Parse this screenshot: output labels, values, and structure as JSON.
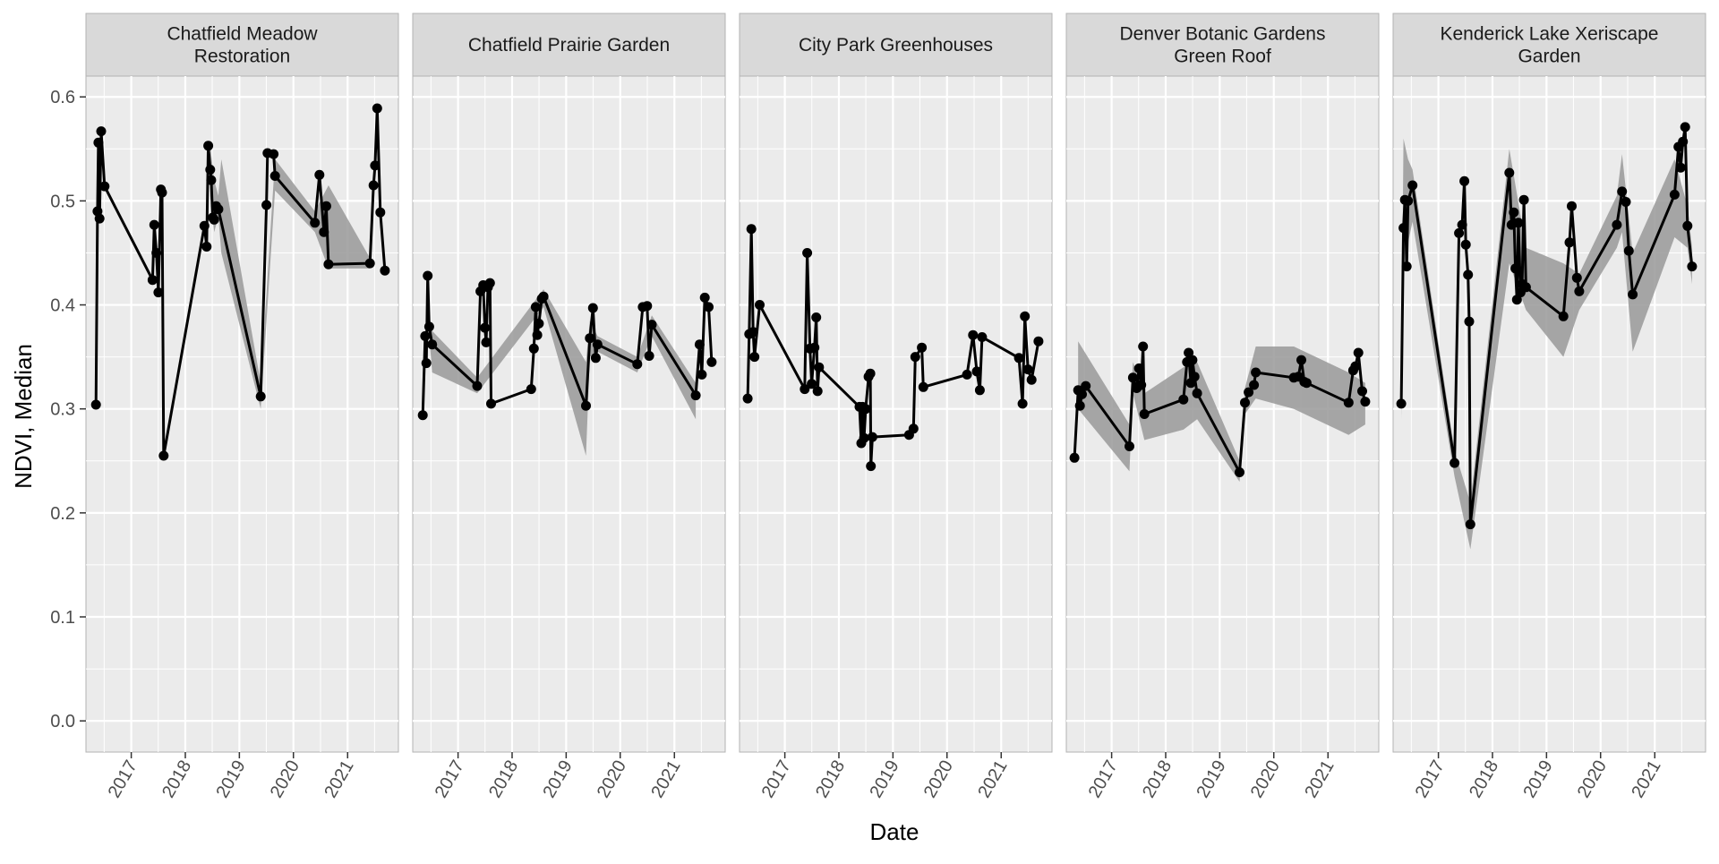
{
  "chart_data": {
    "type": "line",
    "xlabel": "Date",
    "ylabel": "NDVI, Median",
    "ylim": [
      -0.03,
      0.62
    ],
    "y_ticks": [
      0.0,
      0.1,
      0.2,
      0.3,
      0.4,
      0.5,
      0.6
    ],
    "y_tick_labels": [
      "0.0",
      "0.1",
      "0.2",
      "0.3",
      "0.4",
      "0.5",
      "0.6"
    ],
    "xlim": [
      "2016-03-01",
      "2021-12-10"
    ],
    "x_ticks": [
      "2017-01-01",
      "2018-01-01",
      "2019-01-01",
      "2020-01-01",
      "2021-01-01"
    ],
    "x_tick_labels": [
      "2017",
      "2018",
      "2019",
      "2020",
      "2021"
    ],
    "grid": true,
    "colors": {
      "panel_bg": "#ebebeb",
      "strip_bg": "#d9d9d9",
      "grid": "#ffffff",
      "line": "#000000",
      "ribbon": "#999999"
    },
    "panels": [
      {
        "title_lines": [
          "Chatfield Meadow",
          "Restoration"
        ],
        "points": [
          [
            "2016-05-08",
            0.304
          ],
          [
            "2016-05-18",
            0.49
          ],
          [
            "2016-05-24",
            0.556
          ],
          [
            "2016-06-01",
            0.483
          ],
          [
            "2016-06-12",
            0.567
          ],
          [
            "2016-07-05",
            0.514
          ],
          [
            "2017-05-25",
            0.424
          ],
          [
            "2017-06-05",
            0.477
          ],
          [
            "2017-06-20",
            0.45
          ],
          [
            "2017-07-03",
            0.412
          ],
          [
            "2017-07-20",
            0.511
          ],
          [
            "2017-07-28",
            0.508
          ],
          [
            "2017-08-08",
            0.255
          ],
          [
            "2018-05-10",
            0.476
          ],
          [
            "2018-05-25",
            0.456
          ],
          [
            "2018-06-05",
            0.553
          ],
          [
            "2018-06-18",
            0.53
          ],
          [
            "2018-06-25",
            0.52
          ],
          [
            "2018-07-05",
            0.484
          ],
          [
            "2018-07-15",
            0.482
          ],
          [
            "2018-07-28",
            0.495
          ],
          [
            "2018-08-12",
            0.492
          ],
          [
            "2019-05-25",
            0.312
          ],
          [
            "2019-07-03",
            0.496
          ],
          [
            "2019-07-10",
            0.546
          ],
          [
            "2019-08-20",
            0.545
          ],
          [
            "2019-08-30",
            0.524
          ],
          [
            "2020-05-25",
            0.479
          ],
          [
            "2020-06-25",
            0.525
          ],
          [
            "2020-07-25",
            0.47
          ],
          [
            "2020-08-10",
            0.495
          ],
          [
            "2020-08-25",
            0.439
          ],
          [
            "2021-06-01",
            0.44
          ],
          [
            "2021-06-25",
            0.515
          ],
          [
            "2021-07-05",
            0.534
          ],
          [
            "2021-07-20",
            0.589
          ],
          [
            "2021-08-10",
            0.489
          ],
          [
            "2021-09-10",
            0.433
          ]
        ],
        "ribbon": [
          [
            "2018-06-18",
            0.505,
            0.553
          ],
          [
            "2018-07-15",
            0.47,
            0.52
          ],
          [
            "2018-08-12",
            0.485,
            0.505
          ],
          [
            "2018-09-01",
            0.45,
            0.54
          ],
          [
            "2019-05-25",
            0.3,
            0.325
          ],
          [
            "2019-08-30",
            0.51,
            0.54
          ],
          [
            "2020-05-25",
            0.47,
            0.49
          ],
          [
            "2020-08-25",
            0.435,
            0.515
          ],
          [
            "2021-06-01",
            0.435,
            0.445
          ]
        ]
      },
      {
        "title_lines": [
          "Chatfield Prairie Garden"
        ],
        "points": [
          [
            "2016-05-08",
            0.294
          ],
          [
            "2016-05-24",
            0.37
          ],
          [
            "2016-06-01",
            0.344
          ],
          [
            "2016-06-10",
            0.428
          ],
          [
            "2016-06-20",
            0.379
          ],
          [
            "2016-07-10",
            0.362
          ],
          [
            "2017-05-10",
            0.322
          ],
          [
            "2017-06-01",
            0.413
          ],
          [
            "2017-06-20",
            0.419
          ],
          [
            "2017-07-01",
            0.378
          ],
          [
            "2017-07-10",
            0.364
          ],
          [
            "2017-07-22",
            0.417
          ],
          [
            "2017-08-05",
            0.421
          ],
          [
            "2017-08-12",
            0.305
          ],
          [
            "2018-05-10",
            0.319
          ],
          [
            "2018-05-28",
            0.358
          ],
          [
            "2018-06-10",
            0.398
          ],
          [
            "2018-06-20",
            0.371
          ],
          [
            "2018-07-01",
            0.382
          ],
          [
            "2018-07-20",
            0.406
          ],
          [
            "2018-08-01",
            0.408
          ],
          [
            "2019-05-15",
            0.303
          ],
          [
            "2019-06-10",
            0.368
          ],
          [
            "2019-07-01",
            0.397
          ],
          [
            "2019-07-20",
            0.349
          ],
          [
            "2019-08-01",
            0.362
          ],
          [
            "2020-04-25",
            0.343
          ],
          [
            "2020-06-01",
            0.398
          ],
          [
            "2020-07-01",
            0.399
          ],
          [
            "2020-07-15",
            0.351
          ],
          [
            "2020-08-01",
            0.381
          ],
          [
            "2021-05-25",
            0.313
          ],
          [
            "2021-06-20",
            0.362
          ],
          [
            "2021-07-05",
            0.333
          ],
          [
            "2021-07-25",
            0.407
          ],
          [
            "2021-08-20",
            0.398
          ],
          [
            "2021-09-10",
            0.345
          ]
        ],
        "ribbon": [
          [
            "2016-06-20",
            0.37,
            0.39
          ],
          [
            "2016-07-10",
            0.335,
            0.375
          ],
          [
            "2017-05-10",
            0.315,
            0.33
          ],
          [
            "2018-08-01",
            0.398,
            0.415
          ],
          [
            "2019-05-15",
            0.255,
            0.345
          ],
          [
            "2019-06-10",
            0.35,
            0.385
          ],
          [
            "2019-08-01",
            0.355,
            0.37
          ],
          [
            "2020-04-25",
            0.335,
            0.35
          ],
          [
            "2020-08-01",
            0.37,
            0.39
          ],
          [
            "2021-05-25",
            0.29,
            0.325
          ]
        ]
      },
      {
        "title_lines": [
          "City Park Greenhouses"
        ],
        "points": [
          [
            "2016-04-25",
            0.31
          ],
          [
            "2016-05-05",
            0.372
          ],
          [
            "2016-05-20",
            0.473
          ],
          [
            "2016-06-01",
            0.374
          ],
          [
            "2016-06-10",
            0.35
          ],
          [
            "2016-07-15",
            0.4
          ],
          [
            "2017-05-15",
            0.319
          ],
          [
            "2017-06-01",
            0.45
          ],
          [
            "2017-06-20",
            0.358
          ],
          [
            "2017-07-01",
            0.324
          ],
          [
            "2017-07-20",
            0.359
          ],
          [
            "2017-08-01",
            0.388
          ],
          [
            "2017-08-10",
            0.317
          ],
          [
            "2017-08-20",
            0.34
          ],
          [
            "2018-05-20",
            0.302
          ],
          [
            "2018-06-01",
            0.267
          ],
          [
            "2018-06-10",
            0.302
          ],
          [
            "2018-06-20",
            0.272
          ],
          [
            "2018-07-01",
            0.3
          ],
          [
            "2018-07-20",
            0.331
          ],
          [
            "2018-08-01",
            0.334
          ],
          [
            "2018-08-05",
            0.245
          ],
          [
            "2018-08-15",
            0.273
          ],
          [
            "2019-04-20",
            0.275
          ],
          [
            "2019-05-20",
            0.281
          ],
          [
            "2019-06-01",
            0.35
          ],
          [
            "2019-07-15",
            0.359
          ],
          [
            "2019-07-25",
            0.321
          ],
          [
            "2020-05-15",
            0.333
          ],
          [
            "2020-06-25",
            0.371
          ],
          [
            "2020-07-20",
            0.336
          ],
          [
            "2020-08-10",
            0.318
          ],
          [
            "2020-08-25",
            0.369
          ],
          [
            "2021-05-01",
            0.349
          ],
          [
            "2021-05-25",
            0.305
          ],
          [
            "2021-06-10",
            0.389
          ],
          [
            "2021-07-01",
            0.338
          ],
          [
            "2021-07-25",
            0.328
          ],
          [
            "2021-09-10",
            0.365
          ]
        ],
        "ribbon": []
      },
      {
        "title_lines": [
          "Denver Botanic Gardens",
          "Green Roof"
        ],
        "points": [
          [
            "2016-04-25",
            0.253
          ],
          [
            "2016-05-20",
            0.318
          ],
          [
            "2016-06-01",
            0.303
          ],
          [
            "2016-06-15",
            0.314
          ],
          [
            "2016-07-10",
            0.322
          ],
          [
            "2017-05-01",
            0.264
          ],
          [
            "2017-05-25",
            0.33
          ],
          [
            "2017-06-20",
            0.32
          ],
          [
            "2017-07-05",
            0.339
          ],
          [
            "2017-07-20",
            0.323
          ],
          [
            "2017-08-01",
            0.36
          ],
          [
            "2017-08-10",
            0.295
          ],
          [
            "2018-05-01",
            0.309
          ],
          [
            "2018-05-25",
            0.345
          ],
          [
            "2018-06-05",
            0.354
          ],
          [
            "2018-06-20",
            0.325
          ],
          [
            "2018-07-01",
            0.347
          ],
          [
            "2018-07-15",
            0.331
          ],
          [
            "2018-08-01",
            0.315
          ],
          [
            "2019-05-15",
            0.239
          ],
          [
            "2019-06-20",
            0.306
          ],
          [
            "2019-07-15",
            0.316
          ],
          [
            "2019-08-20",
            0.323
          ],
          [
            "2019-09-01",
            0.335
          ],
          [
            "2020-05-15",
            0.33
          ],
          [
            "2020-06-15",
            0.331
          ],
          [
            "2020-07-05",
            0.347
          ],
          [
            "2020-07-25",
            0.326
          ],
          [
            "2020-08-10",
            0.325
          ],
          [
            "2021-05-20",
            0.306
          ],
          [
            "2021-06-20",
            0.337
          ],
          [
            "2021-07-05",
            0.341
          ],
          [
            "2021-07-25",
            0.354
          ],
          [
            "2021-08-20",
            0.317
          ],
          [
            "2021-09-10",
            0.307
          ]
        ],
        "ribbon": [
          [
            "2016-05-20",
            0.3,
            0.365
          ],
          [
            "2017-05-01",
            0.24,
            0.285
          ],
          [
            "2017-05-25",
            0.315,
            0.345
          ],
          [
            "2017-08-10",
            0.27,
            0.315
          ],
          [
            "2018-05-01",
            0.28,
            0.34
          ],
          [
            "2018-08-01",
            0.29,
            0.345
          ],
          [
            "2019-05-15",
            0.23,
            0.25
          ],
          [
            "2019-06-20",
            0.295,
            0.32
          ],
          [
            "2019-09-01",
            0.31,
            0.36
          ],
          [
            "2020-05-15",
            0.3,
            0.36
          ],
          [
            "2021-05-20",
            0.275,
            0.335
          ],
          [
            "2021-09-10",
            0.285,
            0.325
          ]
        ]
      },
      {
        "title_lines": [
          "Kenderick Lake Xeriscape",
          "Garden"
        ],
        "points": [
          [
            "2016-04-25",
            0.305
          ],
          [
            "2016-05-10",
            0.474
          ],
          [
            "2016-05-20",
            0.501
          ],
          [
            "2016-06-01",
            0.437
          ],
          [
            "2016-06-10",
            0.5
          ],
          [
            "2016-07-10",
            0.515
          ],
          [
            "2017-04-20",
            0.248
          ],
          [
            "2017-05-20",
            0.469
          ],
          [
            "2017-06-10",
            0.477
          ],
          [
            "2017-06-25",
            0.519
          ],
          [
            "2017-07-05",
            0.458
          ],
          [
            "2017-07-20",
            0.429
          ],
          [
            "2017-07-28",
            0.384
          ],
          [
            "2017-08-05",
            0.189
          ],
          [
            "2018-04-25",
            0.527
          ],
          [
            "2018-05-10",
            0.477
          ],
          [
            "2018-05-25",
            0.489
          ],
          [
            "2018-06-05",
            0.435
          ],
          [
            "2018-06-15",
            0.405
          ],
          [
            "2018-06-25",
            0.479
          ],
          [
            "2018-07-10",
            0.412
          ],
          [
            "2018-07-20",
            0.42
          ],
          [
            "2018-08-01",
            0.501
          ],
          [
            "2018-08-15",
            0.417
          ],
          [
            "2019-04-25",
            0.389
          ],
          [
            "2019-06-05",
            0.46
          ],
          [
            "2019-06-20",
            0.495
          ],
          [
            "2019-07-25",
            0.426
          ],
          [
            "2019-08-10",
            0.413
          ],
          [
            "2020-04-20",
            0.477
          ],
          [
            "2020-05-25",
            0.509
          ],
          [
            "2020-06-20",
            0.499
          ],
          [
            "2020-07-10",
            0.452
          ],
          [
            "2020-08-05",
            0.41
          ],
          [
            "2021-05-15",
            0.506
          ],
          [
            "2021-06-10",
            0.552
          ],
          [
            "2021-06-25",
            0.532
          ],
          [
            "2021-07-10",
            0.557
          ],
          [
            "2021-07-25",
            0.571
          ],
          [
            "2021-08-10",
            0.476
          ],
          [
            "2021-09-10",
            0.437
          ]
        ],
        "ribbon": [
          [
            "2016-04-25",
            0.29,
            0.32
          ],
          [
            "2016-05-10",
            0.43,
            0.56
          ],
          [
            "2016-06-10",
            0.46,
            0.54
          ],
          [
            "2016-07-10",
            0.48,
            0.53
          ],
          [
            "2017-04-20",
            0.235,
            0.26
          ],
          [
            "2017-08-05",
            0.165,
            0.21
          ],
          [
            "2018-04-25",
            0.44,
            0.55
          ],
          [
            "2018-08-15",
            0.395,
            0.455
          ],
          [
            "2019-04-25",
            0.35,
            0.44
          ],
          [
            "2019-08-10",
            0.395,
            0.43
          ],
          [
            "2020-04-20",
            0.455,
            0.505
          ],
          [
            "2020-05-25",
            0.47,
            0.545
          ],
          [
            "2020-08-05",
            0.355,
            0.45
          ],
          [
            "2021-05-15",
            0.465,
            0.54
          ],
          [
            "2021-08-10",
            0.455,
            0.495
          ],
          [
            "2021-09-10",
            0.42,
            0.455
          ]
        ]
      }
    ]
  }
}
